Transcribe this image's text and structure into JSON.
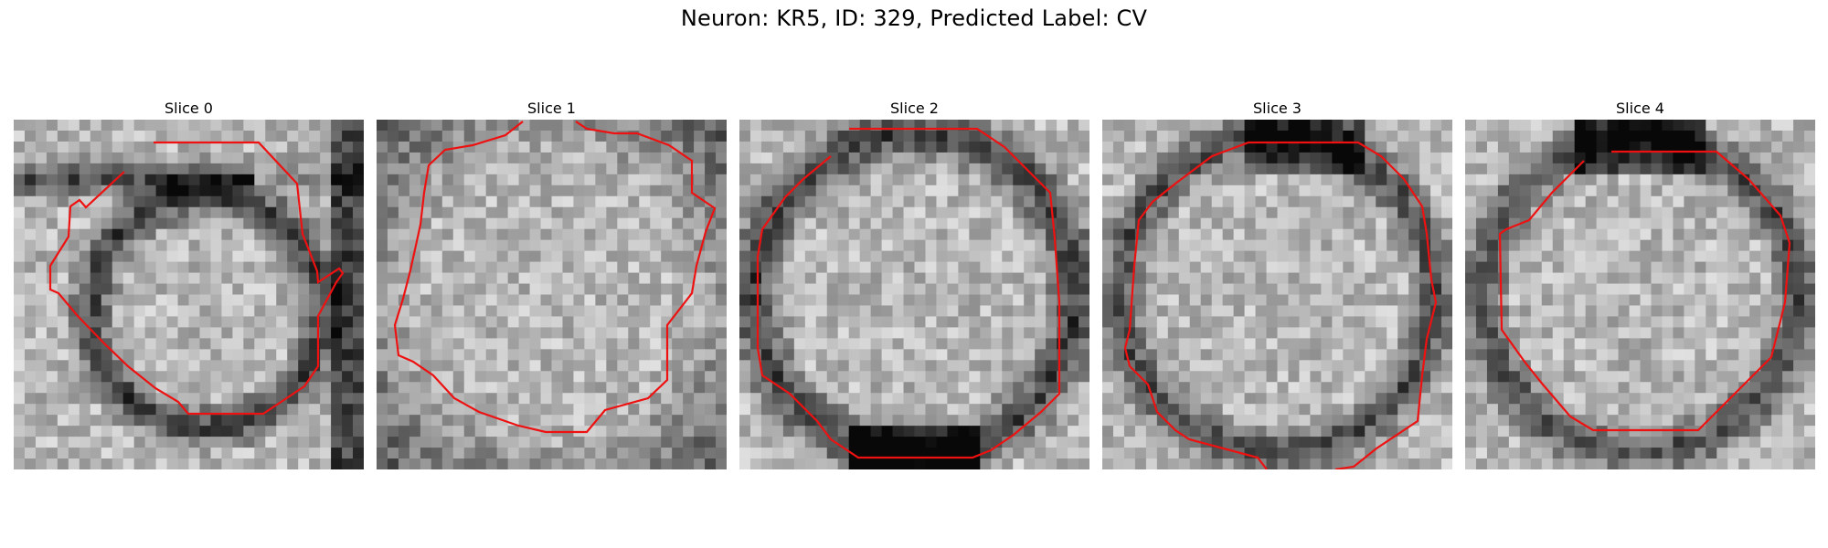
{
  "figure": {
    "title": "Neuron: KR5, ID: 329, Predicted Label: CV",
    "contour_color": "#ee1111"
  },
  "panels": [
    {
      "title": "Slice 0"
    },
    {
      "title": "Slice 1"
    },
    {
      "title": "Slice 2"
    },
    {
      "title": "Slice 3"
    },
    {
      "title": "Slice 4"
    }
  ]
}
